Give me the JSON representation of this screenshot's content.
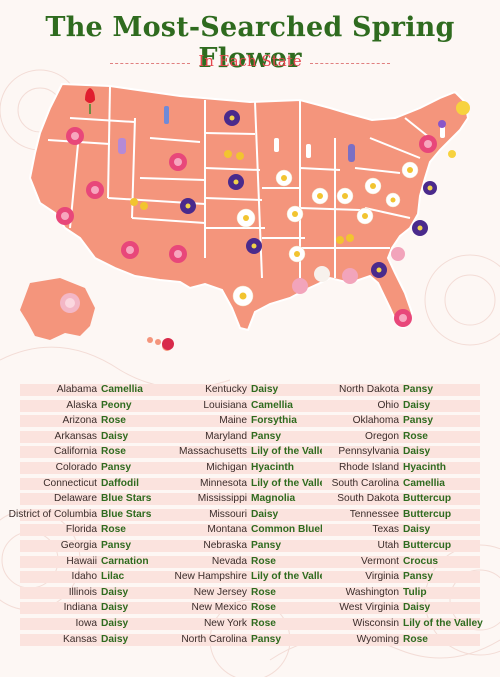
{
  "title": "The Most-Searched Spring Flower",
  "subtitle": "In Each State",
  "colors": {
    "title_green": "#2f6b1f",
    "subtitle_red": "#e4474f",
    "map_fill": "#f4957c",
    "map_border": "#ffffff",
    "row_bar": "#fbe3de"
  },
  "columns": [
    [
      {
        "state": "Alabama",
        "flower": "Camellia"
      },
      {
        "state": "Alaska",
        "flower": "Peony"
      },
      {
        "state": "Arizona",
        "flower": "Rose"
      },
      {
        "state": "Arkansas",
        "flower": "Daisy"
      },
      {
        "state": "California",
        "flower": "Rose"
      },
      {
        "state": "Colorado",
        "flower": "Pansy"
      },
      {
        "state": "Connecticut",
        "flower": "Daffodil"
      },
      {
        "state": "Delaware",
        "flower": "Blue Stars"
      },
      {
        "state": "District of Columbia",
        "flower": "Blue Stars"
      },
      {
        "state": "Florida",
        "flower": "Rose"
      },
      {
        "state": "Georgia",
        "flower": "Pansy"
      },
      {
        "state": "Hawaii",
        "flower": "Carnation"
      },
      {
        "state": "Idaho",
        "flower": "Lilac"
      },
      {
        "state": "Illinois",
        "flower": "Daisy"
      },
      {
        "state": "Indiana",
        "flower": "Daisy"
      },
      {
        "state": "Iowa",
        "flower": "Daisy"
      },
      {
        "state": "Kansas",
        "flower": "Daisy"
      }
    ],
    [
      {
        "state": "Kentucky",
        "flower": "Daisy"
      },
      {
        "state": "Louisiana",
        "flower": "Camellia"
      },
      {
        "state": "Maine",
        "flower": "Forsythia"
      },
      {
        "state": "Maryland",
        "flower": "Pansy"
      },
      {
        "state": "Massachusetts",
        "flower": "Lily of the Valley"
      },
      {
        "state": "Michigan",
        "flower": "Hyacinth"
      },
      {
        "state": "Minnesota",
        "flower": "Lily of the Valley"
      },
      {
        "state": "Mississippi",
        "flower": "Magnolia"
      },
      {
        "state": "Missouri",
        "flower": "Daisy"
      },
      {
        "state": "Montana",
        "flower": "Common Bluebell"
      },
      {
        "state": "Nebraska",
        "flower": "Pansy"
      },
      {
        "state": "Nevada",
        "flower": "Rose"
      },
      {
        "state": "New Hampshire",
        "flower": "Lily of the Valley"
      },
      {
        "state": "New Jersey",
        "flower": "Rose"
      },
      {
        "state": "New Mexico",
        "flower": "Rose"
      },
      {
        "state": "New York",
        "flower": "Rose"
      },
      {
        "state": "North Carolina",
        "flower": "Pansy"
      }
    ],
    [
      {
        "state": "North Dakota",
        "flower": "Pansy"
      },
      {
        "state": "Ohio",
        "flower": "Daisy"
      },
      {
        "state": "Oklahoma",
        "flower": "Pansy"
      },
      {
        "state": "Oregon",
        "flower": "Rose"
      },
      {
        "state": "Pennsylvania",
        "flower": "Daisy"
      },
      {
        "state": "Rhode Island",
        "flower": "Hyacinth"
      },
      {
        "state": "South Carolina",
        "flower": "Camellia"
      },
      {
        "state": "South Dakota",
        "flower": "Buttercup"
      },
      {
        "state": "Tennessee",
        "flower": "Buttercup"
      },
      {
        "state": "Texas",
        "flower": "Daisy"
      },
      {
        "state": "Utah",
        "flower": "Buttercup"
      },
      {
        "state": "Vermont",
        "flower": "Crocus"
      },
      {
        "state": "Virginia",
        "flower": "Pansy"
      },
      {
        "state": "Washington",
        "flower": "Tulip"
      },
      {
        "state": "West Virginia",
        "flower": "Daisy"
      },
      {
        "state": "Wisconsin",
        "flower": "Lily of the Valley"
      },
      {
        "state": "Wyoming",
        "flower": "Rose"
      }
    ]
  ]
}
